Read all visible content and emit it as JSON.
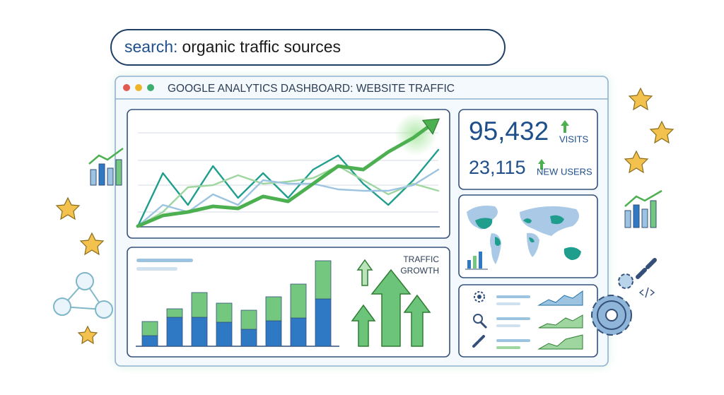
{
  "search": {
    "label": "search:",
    "query": "organic traffic sources"
  },
  "window": {
    "title": "GOOGLE ANALYTICS DASHBOARD: WEBSITE TRAFFIC"
  },
  "line_chart": {
    "type": "line",
    "ylim": [
      0,
      150
    ],
    "series": [
      {
        "color": "#1f9e8e",
        "values": [
          0,
          75,
          30,
          85,
          40,
          75,
          40,
          80,
          100,
          60,
          30,
          65,
          108
        ]
      },
      {
        "color": "#9fd6a0",
        "values": [
          0,
          20,
          55,
          58,
          72,
          60,
          63,
          68,
          85,
          65,
          45,
          60,
          50
        ]
      },
      {
        "color": "#9cc3e0",
        "values": [
          0,
          30,
          20,
          45,
          30,
          65,
          60,
          60,
          52,
          50,
          50,
          58,
          80
        ]
      },
      {
        "color": "#4caf50",
        "values": [
          0,
          15,
          20,
          28,
          25,
          42,
          35,
          60,
          85,
          80,
          105,
          125,
          140
        ]
      }
    ]
  },
  "stats": [
    {
      "value": "95,432",
      "label": "VISITS"
    },
    {
      "value": "23,115",
      "label": "NEW USERS"
    }
  ],
  "bar_chart": {
    "type": "bar",
    "ylim": [
      0,
      130
    ],
    "series": [
      {
        "color": "#2f78c4",
        "values": [
          15,
          41,
          41,
          34,
          24,
          36,
          40,
          67
        ]
      },
      {
        "color": "#74c77e",
        "values": [
          20,
          12,
          35,
          27,
          27,
          34,
          48,
          54
        ]
      }
    ]
  },
  "growth_label": [
    "TRAFFIC",
    "GROWTH"
  ]
}
